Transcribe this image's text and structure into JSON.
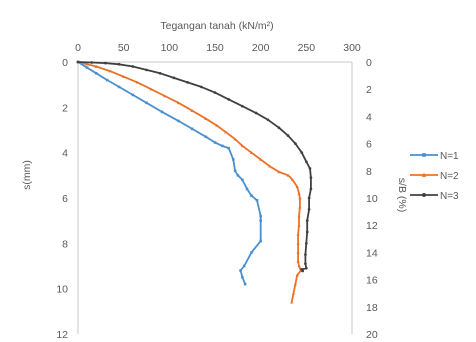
{
  "chart_data": {
    "type": "line",
    "title": "Tegangan tanah (kN/m²)",
    "xlabel": "Tegangan tanah (kN/m²)",
    "ylabel": "s(mm)",
    "y2label": "s/B (%)",
    "x_axis_position": "top",
    "xlim": [
      0,
      300
    ],
    "ylim": [
      0,
      12
    ],
    "y2lim": [
      0,
      20
    ],
    "y_inverted": true,
    "x_ticks": [
      "0",
      "50",
      "100",
      "150",
      "200",
      "250",
      "300"
    ],
    "y_ticks": [
      "0",
      "2",
      "4",
      "6",
      "8",
      "10",
      "12"
    ],
    "y2_ticks": [
      "0",
      "2",
      "4",
      "6",
      "8",
      "10",
      "12",
      "14",
      "16",
      "18",
      "20"
    ],
    "grid": false,
    "legend_position": "right",
    "series": [
      {
        "name": "N=1",
        "color": "#4a8fd0",
        "marker": "square",
        "points": [
          [
            0,
            0
          ],
          [
            10,
            0.25
          ],
          [
            20,
            0.5
          ],
          [
            32,
            0.8
          ],
          [
            45,
            1.1
          ],
          [
            60,
            1.45
          ],
          [
            75,
            1.8
          ],
          [
            92,
            2.2
          ],
          [
            110,
            2.6
          ],
          [
            125,
            2.95
          ],
          [
            140,
            3.3
          ],
          [
            150,
            3.55
          ],
          [
            158,
            3.7
          ],
          [
            165,
            3.8
          ],
          [
            170,
            4.3
          ],
          [
            172,
            4.8
          ],
          [
            175,
            5.0
          ],
          [
            180,
            5.2
          ],
          [
            185,
            5.6
          ],
          [
            190,
            5.9
          ],
          [
            196,
            6.1
          ],
          [
            200,
            6.8
          ],
          [
            200,
            7.0
          ],
          [
            200,
            7.9
          ],
          [
            190,
            8.4
          ],
          [
            182,
            9.0
          ],
          [
            178,
            9.2
          ],
          [
            180,
            9.5
          ],
          [
            183,
            9.8
          ]
        ]
      },
      {
        "name": "N=2",
        "color": "#ea7128",
        "marker": "triangle",
        "points": [
          [
            0,
            0
          ],
          [
            10,
            0.1
          ],
          [
            20,
            0.2
          ],
          [
            35,
            0.4
          ],
          [
            50,
            0.65
          ],
          [
            65,
            0.9
          ],
          [
            80,
            1.2
          ],
          [
            95,
            1.5
          ],
          [
            110,
            1.8
          ],
          [
            125,
            2.15
          ],
          [
            140,
            2.5
          ],
          [
            152,
            2.8
          ],
          [
            162,
            3.1
          ],
          [
            172,
            3.4
          ],
          [
            180,
            3.7
          ],
          [
            190,
            4.0
          ],
          [
            200,
            4.3
          ],
          [
            210,
            4.6
          ],
          [
            220,
            4.85
          ],
          [
            230,
            5.0
          ],
          [
            235,
            5.2
          ],
          [
            240,
            5.5
          ],
          [
            242,
            5.8
          ],
          [
            243,
            6.0
          ],
          [
            243,
            6.4
          ],
          [
            242,
            6.8
          ],
          [
            242,
            7.2
          ],
          [
            241,
            7.6
          ],
          [
            241,
            8.0
          ],
          [
            241,
            8.4
          ],
          [
            241,
            8.8
          ],
          [
            242,
            9.0
          ],
          [
            244,
            9.2
          ],
          [
            240,
            9.4
          ],
          [
            238,
            9.8
          ],
          [
            236,
            10.2
          ],
          [
            234,
            10.6
          ]
        ]
      },
      {
        "name": "N=3",
        "color": "#404040",
        "marker": "circle",
        "points": [
          [
            0,
            0
          ],
          [
            15,
            0.02
          ],
          [
            30,
            0.05
          ],
          [
            45,
            0.1
          ],
          [
            60,
            0.2
          ],
          [
            75,
            0.35
          ],
          [
            90,
            0.5
          ],
          [
            105,
            0.7
          ],
          [
            120,
            0.9
          ],
          [
            135,
            1.1
          ],
          [
            150,
            1.35
          ],
          [
            165,
            1.65
          ],
          [
            180,
            1.95
          ],
          [
            195,
            2.25
          ],
          [
            208,
            2.55
          ],
          [
            220,
            2.9
          ],
          [
            230,
            3.25
          ],
          [
            238,
            3.6
          ],
          [
            245,
            4.0
          ],
          [
            250,
            4.4
          ],
          [
            254,
            4.7
          ],
          [
            255,
            5.1
          ],
          [
            255,
            5.6
          ],
          [
            253,
            6.0
          ],
          [
            253,
            6.5
          ],
          [
            251,
            7.0
          ],
          [
            251,
            7.5
          ],
          [
            250,
            8.0
          ],
          [
            249,
            8.5
          ],
          [
            249,
            8.9
          ],
          [
            250,
            9.1
          ],
          [
            245,
            9.15
          ],
          [
            246,
            9.22
          ]
        ]
      }
    ]
  }
}
